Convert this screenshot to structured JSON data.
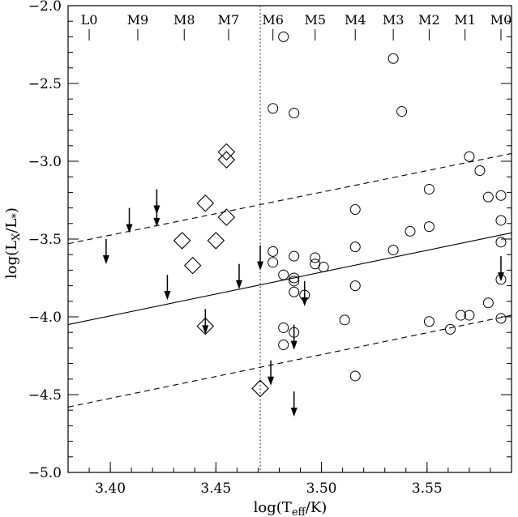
{
  "chart_data": {
    "type": "scatter",
    "title": "",
    "xlabel": "log(T_eff/K)",
    "ylabel": "log(L_X/L_*)",
    "xlim": [
      3.38,
      3.59
    ],
    "ylim": [
      -5.0,
      -2.0
    ],
    "x_major_ticks": [
      3.4,
      3.45,
      3.5,
      3.55
    ],
    "x_minor_step": 0.01,
    "y_major_ticks": [
      -2.0,
      -2.5,
      -3.0,
      -3.5,
      -4.0,
      -4.5,
      -5.0
    ],
    "y_minor_step": 0.1,
    "x_tick_labels": [
      "3.40",
      "3.45",
      "3.50",
      "3.55"
    ],
    "y_tick_labels": [
      "−2.0",
      "−2.5",
      "−3.0",
      "−3.5",
      "−4.0",
      "−4.5",
      "−5.0"
    ],
    "grid": false,
    "top_axis": {
      "labels": [
        "L0",
        "M9",
        "M8",
        "M7",
        "M6",
        "M5",
        "M4",
        "M3",
        "M2",
        "M1",
        "M0"
      ],
      "positions": [
        3.39,
        3.413,
        3.435,
        3.456,
        3.477,
        3.497,
        3.516,
        3.534,
        3.551,
        3.568,
        3.585
      ]
    },
    "vertical_dotted_line": {
      "x": 3.471
    },
    "fit_lines": [
      {
        "style": "solid",
        "x": [
          3.38,
          3.59
        ],
        "y": [
          -4.05,
          -3.46
        ]
      },
      {
        "style": "dashed",
        "x": [
          3.38,
          3.59
        ],
        "y": [
          -3.53,
          -2.95
        ]
      },
      {
        "style": "dashed",
        "x": [
          3.38,
          3.59
        ],
        "y": [
          -4.58,
          -3.99
        ]
      }
    ],
    "series": [
      {
        "marker": "circle",
        "points": [
          [
            3.482,
            -2.2
          ],
          [
            3.534,
            -2.34
          ],
          [
            3.477,
            -2.66
          ],
          [
            3.487,
            -2.69
          ],
          [
            3.538,
            -2.68
          ],
          [
            3.57,
            -2.97
          ],
          [
            3.575,
            -3.06
          ],
          [
            3.551,
            -3.18
          ],
          [
            3.579,
            -3.23
          ],
          [
            3.585,
            -3.22
          ],
          [
            3.516,
            -3.31
          ],
          [
            3.585,
            -3.38
          ],
          [
            3.551,
            -3.42
          ],
          [
            3.542,
            -3.45
          ],
          [
            3.585,
            -3.52
          ],
          [
            3.516,
            -3.55
          ],
          [
            3.534,
            -3.57
          ],
          [
            3.477,
            -3.58
          ],
          [
            3.487,
            -3.61
          ],
          [
            3.497,
            -3.62
          ],
          [
            3.497,
            -3.66
          ],
          [
            3.477,
            -3.65
          ],
          [
            3.501,
            -3.68
          ],
          [
            3.482,
            -3.73
          ],
          [
            3.487,
            -3.75
          ],
          [
            3.487,
            -3.77
          ],
          [
            3.516,
            -3.8
          ],
          [
            3.487,
            -3.84
          ],
          [
            3.492,
            -3.86
          ],
          [
            3.585,
            -3.76
          ],
          [
            3.511,
            -4.02
          ],
          [
            3.551,
            -4.03
          ],
          [
            3.566,
            -3.99
          ],
          [
            3.57,
            -3.99
          ],
          [
            3.579,
            -3.91
          ],
          [
            3.585,
            -4.01
          ],
          [
            3.561,
            -4.08
          ],
          [
            3.482,
            -4.07
          ],
          [
            3.487,
            -4.1
          ],
          [
            3.482,
            -4.18
          ],
          [
            3.516,
            -4.38
          ]
        ]
      },
      {
        "marker": "diamond",
        "points": [
          [
            3.455,
            -2.94
          ],
          [
            3.455,
            -2.99
          ],
          [
            3.445,
            -3.27
          ],
          [
            3.455,
            -3.36
          ],
          [
            3.434,
            -3.51
          ],
          [
            3.45,
            -3.51
          ],
          [
            3.439,
            -3.67
          ],
          [
            3.445,
            -4.06
          ],
          [
            3.471,
            -4.46
          ]
        ]
      },
      {
        "marker": "upper-limit-arrow",
        "points": [
          [
            3.398,
            -3.5
          ],
          [
            3.409,
            -3.3
          ],
          [
            3.422,
            -3.18
          ],
          [
            3.422,
            -3.26
          ],
          [
            3.427,
            -3.73
          ],
          [
            3.445,
            -3.95
          ],
          [
            3.461,
            -3.66
          ],
          [
            3.471,
            -3.54
          ],
          [
            3.476,
            -4.28
          ],
          [
            3.487,
            -4.05
          ],
          [
            3.487,
            -4.48
          ],
          [
            3.492,
            -3.77
          ],
          [
            3.585,
            -3.61
          ]
        ]
      }
    ]
  }
}
